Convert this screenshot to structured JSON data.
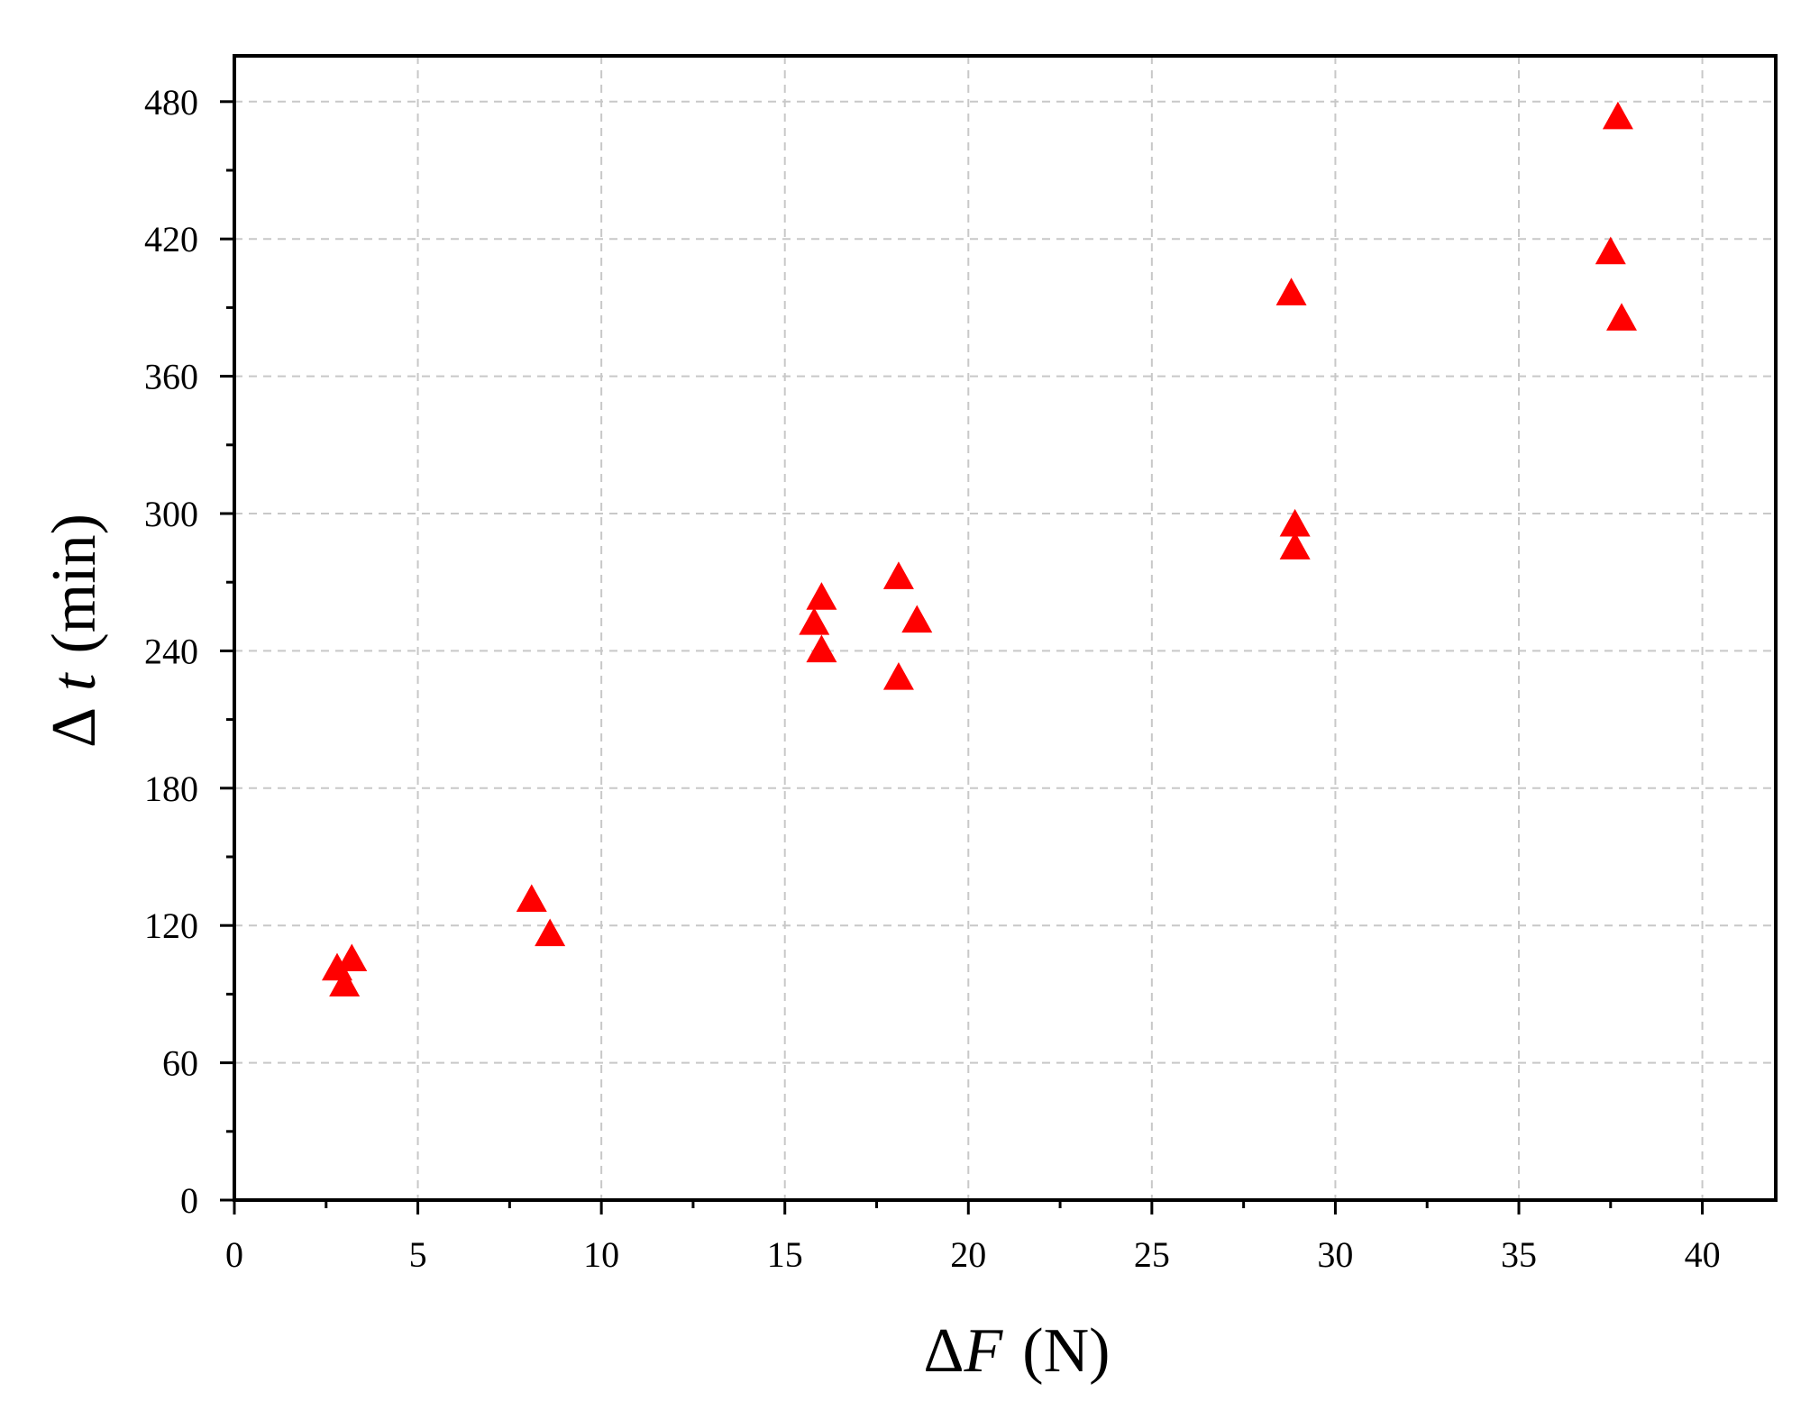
{
  "chart_data": {
    "type": "scatter",
    "title": "",
    "xlabel": "ΔF (N)",
    "ylabel": "Δ t (min)",
    "xlabel_parts": {
      "symbol": "Δ",
      "variable": "F",
      "unit": "(N)"
    },
    "ylabel_parts": {
      "symbol": "Δ",
      "variable": "t",
      "unit": "(min)"
    },
    "xlim": [
      0,
      42
    ],
    "ylim": [
      0,
      500
    ],
    "xticks": [
      0,
      5,
      10,
      15,
      20,
      25,
      30,
      35,
      40
    ],
    "yticks": [
      0,
      60,
      120,
      180,
      240,
      300,
      360,
      420,
      480
    ],
    "grid": true,
    "legend": "none",
    "marker": "triangle",
    "color": "#ff0000",
    "series": [
      {
        "points": [
          {
            "x": 2.8,
            "y": 101
          },
          {
            "x": 3.2,
            "y": 105
          },
          {
            "x": 3.0,
            "y": 94
          },
          {
            "x": 8.1,
            "y": 131
          },
          {
            "x": 8.6,
            "y": 116
          },
          {
            "x": 15.8,
            "y": 252
          },
          {
            "x": 16.0,
            "y": 263
          },
          {
            "x": 16.0,
            "y": 240
          },
          {
            "x": 18.1,
            "y": 272
          },
          {
            "x": 18.6,
            "y": 253
          },
          {
            "x": 18.1,
            "y": 228
          },
          {
            "x": 28.8,
            "y": 396
          },
          {
            "x": 28.9,
            "y": 295
          },
          {
            "x": 28.9,
            "y": 285
          },
          {
            "x": 37.7,
            "y": 473
          },
          {
            "x": 37.5,
            "y": 414
          },
          {
            "x": 37.8,
            "y": 385
          }
        ]
      }
    ]
  }
}
